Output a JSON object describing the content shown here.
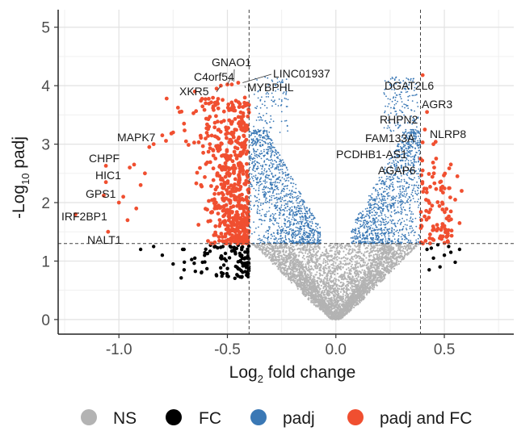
{
  "chart_data": {
    "type": "scatter",
    "subtype": "volcano",
    "title": "",
    "xlabel": "Log2 fold change",
    "xlabel_base": "Log",
    "xlabel_sub": "2",
    "xlabel_rest": " fold change",
    "ylabel": "-Log10 padj",
    "ylabel_base": "-Log",
    "ylabel_sub": "10",
    "ylabel_rest": " padj",
    "xlim": [
      -1.28,
      0.82
    ],
    "ylim": [
      -0.25,
      5.3
    ],
    "grid": true,
    "x_ticks": [
      -1.0,
      -0.5,
      0.0,
      0.5
    ],
    "x_tick_labels": [
      "-1.0",
      "-0.5",
      "0.0",
      "0.5"
    ],
    "y_ticks": [
      0,
      1,
      2,
      3,
      4,
      5
    ],
    "y_tick_labels": [
      "0",
      "1",
      "2",
      "3",
      "4",
      "5"
    ],
    "thresholds": {
      "fc_left": -0.4,
      "fc_right": 0.39,
      "padj_line": 1.3
    },
    "colors": {
      "NS": "#b3b3b3",
      "FC": "#000000",
      "padj": "#3a78b5",
      "padj_and_FC": "#f04f30"
    },
    "legend": [
      {
        "key": "NS",
        "label": "NS",
        "color": "#b3b3b3"
      },
      {
        "key": "FC",
        "label": "FC",
        "color": "#000000"
      },
      {
        "key": "padj",
        "label": "padj",
        "color": "#3a78b5"
      },
      {
        "key": "padj_and_FC",
        "label": "padj and FC",
        "color": "#f04f30"
      }
    ],
    "legend_position": "bottom",
    "labeled_genes": [
      {
        "name": "GNAO1",
        "x": -0.47,
        "y": 4.07
      },
      {
        "name": "LINC01937",
        "x": -0.43,
        "y": 4.05
      },
      {
        "name": "C4orf54",
        "x": -0.5,
        "y": 4.02
      },
      {
        "name": "XKR5",
        "x": -0.53,
        "y": 4.0
      },
      {
        "name": "MYBPHL",
        "x": -0.42,
        "y": 4.0
      },
      {
        "name": "DGAT2L6",
        "x": 0.4,
        "y": 4.18
      },
      {
        "name": "AGR3",
        "x": 0.42,
        "y": 3.55
      },
      {
        "name": "RHPN2",
        "x": 0.41,
        "y": 3.25
      },
      {
        "name": "NLRP8",
        "x": 0.46,
        "y": 3.04
      },
      {
        "name": "FAM133A",
        "x": 0.4,
        "y": 3.03
      },
      {
        "name": "PCDHB1-AS1",
        "x": 0.39,
        "y": 2.75
      },
      {
        "name": "AGAP6",
        "x": 0.4,
        "y": 2.55
      },
      {
        "name": "MAPK7",
        "x": -0.84,
        "y": 3.0
      },
      {
        "name": "CHPF",
        "x": -1.06,
        "y": 2.63
      },
      {
        "name": "HIC1",
        "x": -1.06,
        "y": 2.35
      },
      {
        "name": "GPS1",
        "x": -1.07,
        "y": 2.12
      },
      {
        "name": "IRF2BP1",
        "x": -1.2,
        "y": 1.8
      },
      {
        "name": "NALT1",
        "x": -1.05,
        "y": 1.5
      }
    ],
    "extra_points_left": [
      [
        -0.84,
        3.0
      ],
      [
        -0.86,
        2.95
      ],
      [
        -0.93,
        2.65
      ],
      [
        -0.95,
        2.6
      ],
      [
        -1.06,
        2.63
      ],
      [
        -1.06,
        2.35
      ],
      [
        -1.07,
        2.12
      ],
      [
        -1.2,
        1.8
      ],
      [
        -1.05,
        1.5
      ],
      [
        -0.78,
        3.78
      ],
      [
        -0.72,
        3.55
      ],
      [
        -0.65,
        3.9
      ],
      [
        -0.6,
        3.7
      ],
      [
        -0.55,
        3.95
      ],
      [
        -0.48,
        4.02
      ],
      [
        -0.5,
        4.02
      ],
      [
        -0.53,
        4.0
      ],
      [
        -0.45,
        4.05
      ],
      [
        -0.75,
        3.2
      ],
      [
        -0.8,
        3.15
      ],
      [
        -0.7,
        3.35
      ],
      [
        -0.9,
        2.3
      ],
      [
        -0.98,
        2.1
      ],
      [
        -0.88,
        2.5
      ],
      [
        -1.0,
        2.0
      ],
      [
        -0.92,
        1.9
      ],
      [
        -0.96,
        1.7
      ]
    ],
    "extra_points_right": [
      [
        0.4,
        4.18
      ],
      [
        0.42,
        3.55
      ],
      [
        0.41,
        3.25
      ],
      [
        0.46,
        3.04
      ],
      [
        0.45,
        3.0
      ],
      [
        0.4,
        3.03
      ],
      [
        0.39,
        2.75
      ],
      [
        0.4,
        2.55
      ],
      [
        0.56,
        2.45
      ],
      [
        0.58,
        2.2
      ],
      [
        0.55,
        2.05
      ],
      [
        0.57,
        1.65
      ],
      [
        0.5,
        1.6
      ],
      [
        0.53,
        1.85
      ],
      [
        0.48,
        2.35
      ]
    ],
    "fc_only_right": [
      [
        0.42,
        1.2
      ],
      [
        0.45,
        1.05
      ],
      [
        0.48,
        0.9
      ],
      [
        0.5,
        1.1
      ],
      [
        0.52,
        1.25
      ],
      [
        0.55,
        0.98
      ],
      [
        0.47,
        1.28
      ],
      [
        0.43,
        0.85
      ],
      [
        0.53,
        1.15
      ],
      [
        0.57,
        1.2
      ],
      [
        0.44,
        1.22
      ]
    ],
    "fc_only_left_extra": [
      [
        -0.9,
        1.2
      ],
      [
        -0.84,
        1.25
      ],
      [
        -0.8,
        1.1
      ],
      [
        -0.75,
        0.95
      ],
      [
        -0.7,
        1.2
      ],
      [
        -0.65,
        1.05
      ],
      [
        -0.62,
        0.8
      ],
      [
        -0.55,
        0.75
      ]
    ]
  }
}
